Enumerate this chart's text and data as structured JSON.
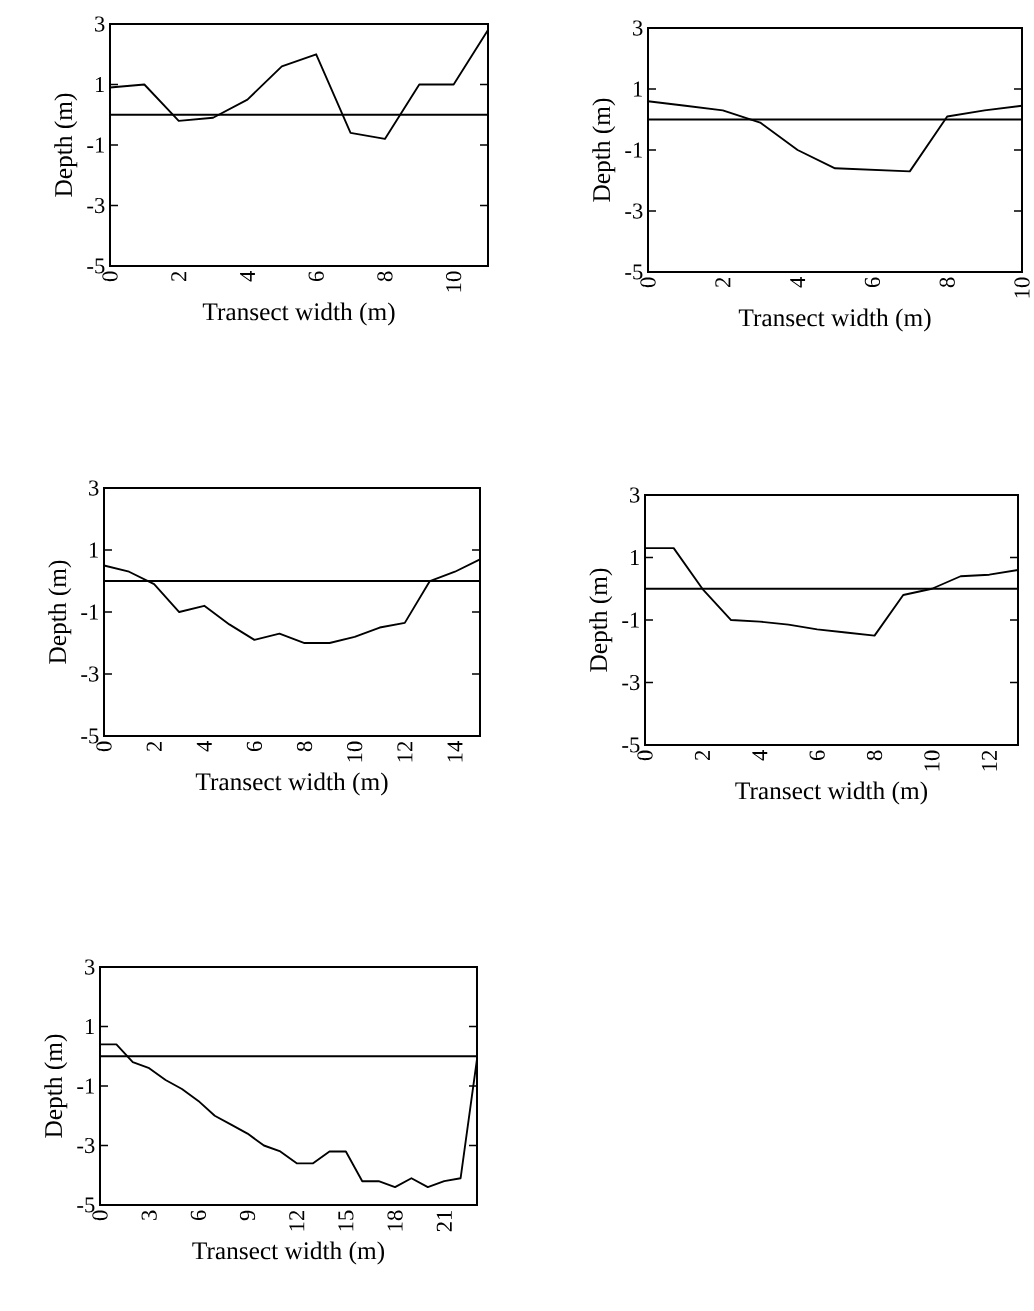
{
  "chart_data": [
    {
      "type": "line",
      "xlabel": "Transect width (m)",
      "ylabel": "Depth (m)",
      "xlim": [
        0,
        11
      ],
      "xticks": [
        0,
        2,
        4,
        6,
        8,
        10
      ],
      "ylim": [
        -5,
        3
      ],
      "yticks": [
        -5,
        -3,
        -1,
        1,
        3
      ],
      "ref_lines": [
        {
          "axis": "y",
          "value": 0
        }
      ],
      "series": [
        {
          "color": "#000000",
          "x": [
            0,
            1,
            2,
            3,
            4,
            5,
            6,
            7,
            8,
            9,
            10,
            11
          ],
          "values": [
            0.9,
            1.0,
            -0.2,
            -0.1,
            0.5,
            1.6,
            2.0,
            -0.6,
            -0.8,
            1.0,
            1.0,
            2.8
          ]
        }
      ]
    },
    {
      "type": "line",
      "xlabel": "Transect width (m)",
      "ylabel": "Depth (m)",
      "xlim": [
        0,
        10
      ],
      "xticks": [
        0,
        2,
        4,
        6,
        8,
        10
      ],
      "ylim": [
        -5,
        3
      ],
      "yticks": [
        -5,
        -3,
        -1,
        1,
        3
      ],
      "ref_lines": [
        {
          "axis": "y",
          "value": 0
        }
      ],
      "series": [
        {
          "color": "#000000",
          "x": [
            0,
            1,
            2,
            3,
            4,
            5,
            6,
            7,
            8,
            9,
            10
          ],
          "values": [
            0.6,
            0.45,
            0.3,
            -0.1,
            -1.0,
            -1.6,
            -1.65,
            -1.7,
            0.1,
            0.3,
            0.45
          ]
        }
      ]
    },
    {
      "type": "line",
      "xlabel": "Transect width (m)",
      "ylabel": "Depth (m)",
      "xlim": [
        0,
        15
      ],
      "xticks": [
        0,
        2,
        4,
        6,
        8,
        10,
        12,
        14
      ],
      "ylim": [
        -5,
        3
      ],
      "yticks": [
        -5,
        -3,
        -1,
        1,
        3
      ],
      "ref_lines": [
        {
          "axis": "y",
          "value": 0
        }
      ],
      "series": [
        {
          "color": "#000000",
          "x": [
            0,
            1,
            2,
            3,
            4,
            5,
            6,
            7,
            8,
            9,
            10,
            11,
            12,
            13,
            14,
            15
          ],
          "values": [
            0.5,
            0.3,
            -0.1,
            -1.0,
            -0.8,
            -1.4,
            -1.9,
            -1.7,
            -2.0,
            -2.0,
            -1.8,
            -1.5,
            -1.35,
            0.0,
            0.3,
            0.7
          ]
        }
      ]
    },
    {
      "type": "line",
      "xlabel": "Transect width (m)",
      "ylabel": "Depth (m)",
      "xlim": [
        0,
        13
      ],
      "xticks": [
        0,
        2,
        4,
        6,
        8,
        10,
        12
      ],
      "ylim": [
        -5,
        3
      ],
      "yticks": [
        -5,
        -3,
        -1,
        1,
        3
      ],
      "ref_lines": [
        {
          "axis": "y",
          "value": 0
        }
      ],
      "series": [
        {
          "color": "#000000",
          "x": [
            0,
            1,
            2,
            3,
            4,
            5,
            6,
            7,
            8,
            9,
            10,
            11,
            12,
            13
          ],
          "values": [
            1.3,
            1.3,
            0.0,
            -1.0,
            -1.05,
            -1.15,
            -1.3,
            -1.4,
            -1.5,
            -0.2,
            0.0,
            0.4,
            0.45,
            0.6
          ]
        }
      ]
    },
    {
      "type": "line",
      "xlabel": "Transect width (m)",
      "ylabel": "Depth (m)",
      "xlim": [
        0,
        23
      ],
      "xticks": [
        0,
        3,
        6,
        9,
        12,
        15,
        18,
        21
      ],
      "ylim": [
        -5,
        3
      ],
      "yticks": [
        -5,
        -3,
        -1,
        1,
        3
      ],
      "ref_lines": [
        {
          "axis": "y",
          "value": 0
        }
      ],
      "series": [
        {
          "color": "#000000",
          "x": [
            0,
            1,
            2,
            3,
            4,
            5,
            6,
            7,
            8,
            9,
            10,
            11,
            12,
            13,
            14,
            15,
            16,
            17,
            18,
            19,
            20,
            21,
            22,
            23
          ],
          "values": [
            0.4,
            0.4,
            -0.2,
            -0.4,
            -0.8,
            -1.1,
            -1.5,
            -2.0,
            -2.3,
            -2.6,
            -3.0,
            -3.2,
            -3.6,
            -3.6,
            -3.2,
            -3.2,
            -4.2,
            -4.2,
            -4.4,
            -4.1,
            -4.4,
            -4.2,
            -4.1,
            -0.1
          ]
        }
      ]
    }
  ]
}
